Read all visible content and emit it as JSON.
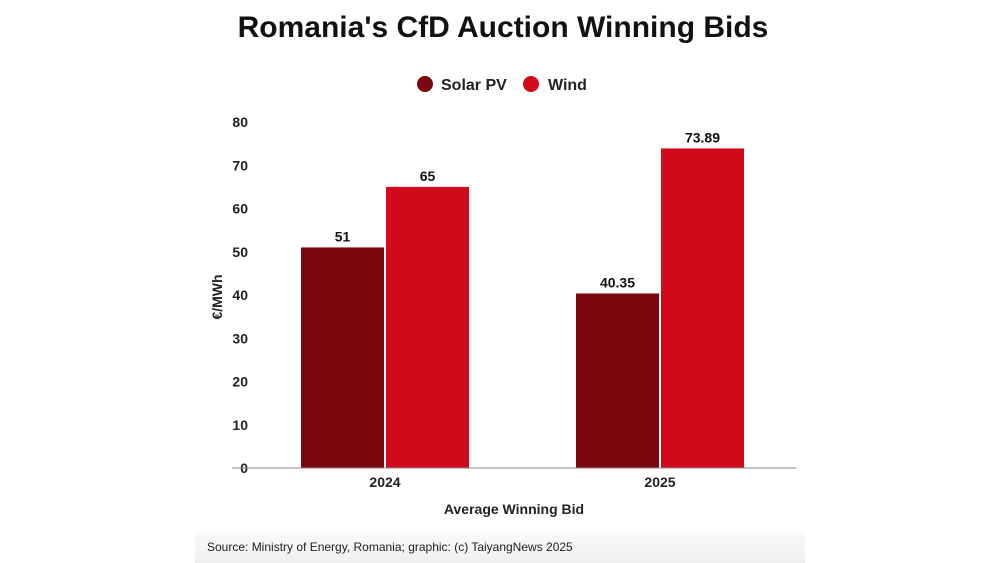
{
  "chart_data": {
    "type": "bar",
    "title": "Romania's CfD Auction Winning Bids",
    "xlabel": "Average Winning Bid",
    "ylabel": "€/MWh",
    "categories": [
      "2024",
      "2025"
    ],
    "series": [
      {
        "name": "Solar PV",
        "color": "#7d0711",
        "values": [
          51,
          40.35
        ],
        "labels": [
          "51",
          "40.35"
        ]
      },
      {
        "name": "Wind",
        "color": "#d10a1c",
        "values": [
          65,
          73.89
        ],
        "labels": [
          "65",
          "73.89"
        ]
      }
    ],
    "ylim": [
      0,
      80
    ],
    "yticks": [
      0,
      10,
      20,
      30,
      40,
      50,
      60,
      70,
      80
    ],
    "grid": false,
    "legend": "top-center"
  },
  "footer": {
    "source": "Source: Ministry of Energy, Romania; graphic: (c) TaiyangNews 2025"
  }
}
